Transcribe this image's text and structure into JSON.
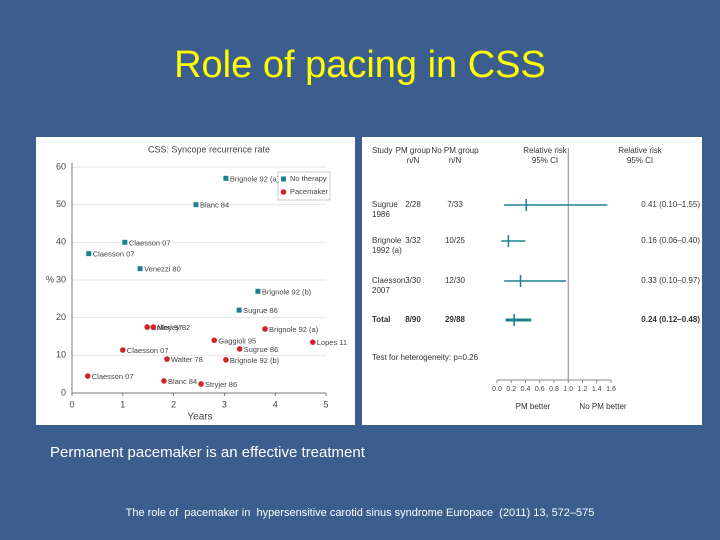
{
  "title": "Role of pacing in CSS",
  "caption": "Permanent pacemaker is an effective treatment",
  "citation": "The role of  pacemaker in  hypersensitive carotid sinus syndrome Europace  (2011) 13, 572–575",
  "chart_data": [
    {
      "type": "scatter",
      "title": "CSS: Syncope recurrence rate",
      "x_label": "Years",
      "y_label": "%",
      "xlim": [
        0,
        5
      ],
      "xticks": [
        0,
        1,
        2,
        3,
        4,
        5
      ],
      "ylim": [
        0,
        60
      ],
      "yticks": [
        0,
        10,
        20,
        30,
        40,
        50,
        60
      ],
      "grid": true,
      "legend": "upper right",
      "series": [
        {
          "name": "No therapy",
          "color": "#1b8090",
          "marker": "square",
          "x": [
            3.03,
            2.44,
            1.04,
            0.33,
            1.34,
            3.66,
            3.29
          ],
          "values": [
            57,
            50,
            40,
            37,
            33,
            27,
            22
          ],
          "point_labels": [
            "Brignole 92 (a)",
            "Blanc 84",
            "Claesson 07",
            "Claesson 07",
            "Venezzi 80",
            "Brignole 92 (b)",
            "Sugrue 86"
          ]
        },
        {
          "name": "Pacemaker",
          "color": "#d2232a",
          "marker": "circle",
          "x": [
            3.8,
            1.48,
            1.6,
            4.74,
            2.8,
            1.0,
            3.3,
            1.87,
            3.03,
            0.31,
            1.81,
            2.54
          ],
          "values": [
            17,
            17.5,
            17.5,
            13.5,
            14,
            11.4,
            11.7,
            9,
            8.8,
            4.5,
            3.2,
            2.4
          ],
          "point_labels": [
            "Brignole 92 (a)",
            "Crilley 97",
            "Morley 82",
            "Lopes 11",
            "Gaggioli 95",
            "Claesson 07",
            "Sugrue 86",
            "Walter 78",
            "Brignole 92 (b)",
            "Claesson 07",
            "Blanc 84",
            "Stryjer 86"
          ]
        }
      ]
    },
    {
      "type": "forest",
      "headers": [
        {
          "text": "Study"
        },
        {
          "text": "PM group",
          "sub": "n/N"
        },
        {
          "text": "No PM group",
          "sub": "n/N"
        },
        {
          "text": "Relative risk",
          "sub": "95% CI"
        },
        {
          "text": "Relative risk",
          "sub": "95% CI"
        }
      ],
      "studies": [
        "Sugrue 1986",
        "Brignole 1992 (a)",
        "Claesson 2007",
        "Total"
      ],
      "pm_group": [
        "2/28",
        "3/32",
        "3/30",
        "8/90"
      ],
      "no_pm_group": [
        "7/33",
        "10/25",
        "12/30",
        "29/88"
      ],
      "values": [
        0.41,
        0.16,
        0.33,
        0.24
      ],
      "ci_low": [
        0.1,
        0.06,
        0.1,
        0.12
      ],
      "ci_high": [
        1.55,
        0.4,
        0.97,
        0.48
      ],
      "value_labels": [
        "0.41 (0.10–1.55)",
        "0.16 (0.06–0.40)",
        "0.33 (0.10–0.97)",
        "0.24 (0.12–0.48)"
      ],
      "heterogeneity": "Test for heterogeneity: p=0.26",
      "color": "#1b8090",
      "reference": 1,
      "xlim": [
        0,
        1.6
      ],
      "xticks": [
        {
          "value": 0,
          "label": "0.0"
        },
        0.2,
        0.4,
        0.6,
        0.8,
        {
          "value": 1,
          "label": "1.0"
        },
        1.2,
        1.4,
        1.6
      ],
      "x_labels": [
        "PM better",
        "No PM better"
      ]
    }
  ]
}
